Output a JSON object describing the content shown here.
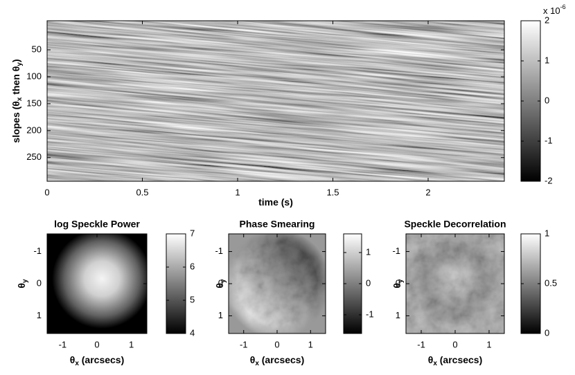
{
  "chart_data": [
    {
      "type": "heatmap",
      "xlabel": [
        "time (s)"
      ],
      "ylabel": [
        "slopes (θ",
        "x",
        " then θ",
        "y",
        ")"
      ],
      "xlim": [
        0,
        2.4
      ],
      "ylim": [
        -4,
        294
      ],
      "y_reversed": true,
      "xticks": [
        0,
        0.5,
        1,
        1.5,
        2
      ],
      "yticks": [
        50,
        100,
        150,
        200,
        250
      ],
      "colorbar": {
        "lim": [
          -2,
          2
        ],
        "ticks": [
          -2,
          -1,
          0,
          1,
          2
        ],
        "exponent": [
          "x 10",
          "-6"
        ]
      }
    },
    {
      "type": "heatmap",
      "title": "log Speckle Power",
      "xlabel": [
        "θ",
        "x",
        " (arcsecs)"
      ],
      "ylabel": [
        "θ",
        "y"
      ],
      "xlim": [
        -1.45,
        1.45
      ],
      "ylim": [
        -1.55,
        1.55
      ],
      "y_reversed": true,
      "xticks": [
        -1,
        0,
        1
      ],
      "yticks": [
        -1,
        0,
        1
      ],
      "colorbar": {
        "lim": [
          4,
          7
        ],
        "ticks": [
          4,
          5,
          6,
          7
        ]
      }
    },
    {
      "type": "heatmap",
      "title": "Phase Smearing",
      "xlabel": [
        "θ",
        "x",
        " (arcsecs)"
      ],
      "ylabel": [
        "θ",
        "y"
      ],
      "xlim": [
        -1.45,
        1.45
      ],
      "ylim": [
        -1.55,
        1.55
      ],
      "y_reversed": true,
      "xticks": [
        -1,
        0,
        1
      ],
      "yticks": [
        -1,
        0,
        1
      ],
      "colorbar": {
        "lim": [
          -1.6,
          1.6
        ],
        "ticks": [
          -1,
          0,
          1
        ]
      }
    },
    {
      "type": "heatmap",
      "title": "Speckle Decorrelation",
      "xlabel": [
        "θ",
        "x",
        " (arcsecs)"
      ],
      "ylabel": [
        "θ",
        "y"
      ],
      "xlim": [
        -1.45,
        1.45
      ],
      "ylim": [
        -1.55,
        1.55
      ],
      "y_reversed": true,
      "xticks": [
        -1,
        0,
        1
      ],
      "yticks": [
        -1,
        0,
        1
      ],
      "colorbar": {
        "lim": [
          0,
          1
        ],
        "ticks": [
          0,
          0.5,
          1
        ]
      }
    }
  ]
}
